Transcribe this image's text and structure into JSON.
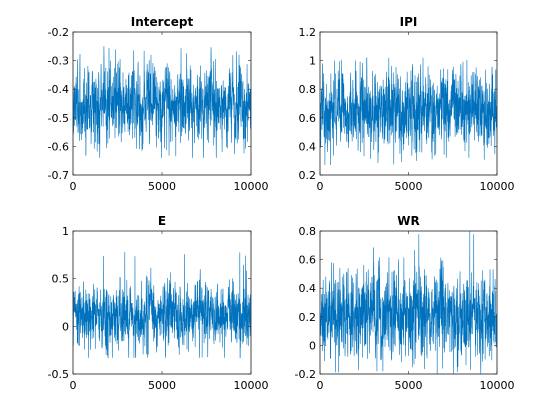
{
  "chart_data": [
    {
      "type": "line",
      "title": "Intercept",
      "xlabel": "",
      "ylabel": "",
      "xlim": [
        0,
        10000
      ],
      "ylim": [
        -0.7,
        -0.2
      ],
      "xticks": [
        0,
        5000,
        10000
      ],
      "yticks": [
        -0.7,
        -0.6,
        -0.5,
        -0.4,
        -0.3,
        -0.2
      ],
      "xtick_labels": [
        "0",
        "5000",
        "10000"
      ],
      "ytick_labels": [
        "-0.7",
        "-0.6",
        "-0.5",
        "-0.4",
        "-0.3",
        "-0.2"
      ],
      "grid": false,
      "series": [
        {
          "n": 10000,
          "mean": -0.45,
          "typical_low": -0.55,
          "typical_high": -0.35,
          "min": -0.64,
          "max": -0.25
        }
      ]
    },
    {
      "type": "line",
      "title": "IPI",
      "xlabel": "",
      "ylabel": "",
      "xlim": [
        0,
        10000
      ],
      "ylim": [
        0.2,
        1.2
      ],
      "xticks": [
        0,
        5000,
        10000
      ],
      "yticks": [
        0.2,
        0.4,
        0.6,
        0.8,
        1.0,
        1.2
      ],
      "xtick_labels": [
        "0",
        "5000",
        "10000"
      ],
      "ytick_labels": [
        "0.2",
        "0.4",
        "0.6",
        "0.8",
        "1",
        "1.2"
      ],
      "grid": false,
      "series": [
        {
          "n": 10000,
          "mean": 0.65,
          "typical_low": 0.45,
          "typical_high": 0.85,
          "min": 0.27,
          "max": 1.02
        }
      ]
    },
    {
      "type": "line",
      "title": "E",
      "xlabel": "",
      "ylabel": "",
      "xlim": [
        0,
        10000
      ],
      "ylim": [
        -0.5,
        1
      ],
      "xticks": [
        0,
        5000,
        10000
      ],
      "yticks": [
        -0.5,
        0,
        0.5,
        1
      ],
      "xtick_labels": [
        "0",
        "5000",
        "10000"
      ],
      "ytick_labels": [
        "-0.5",
        "0",
        "0.5",
        "1"
      ],
      "grid": false,
      "series": [
        {
          "n": 10000,
          "mean": 0.12,
          "typical_low": -0.12,
          "typical_high": 0.38,
          "min": -0.33,
          "max": 0.78
        }
      ]
    },
    {
      "type": "line",
      "title": "WR",
      "xlabel": "",
      "ylabel": "",
      "xlim": [
        0,
        10000
      ],
      "ylim": [
        -0.2,
        0.8
      ],
      "xticks": [
        0,
        5000,
        10000
      ],
      "yticks": [
        -0.2,
        0,
        0.2,
        0.4,
        0.6,
        0.8
      ],
      "xtick_labels": [
        "0",
        "5000",
        "10000"
      ],
      "ytick_labels": [
        "-0.2",
        "0",
        "0.2",
        "0.4",
        "0.6",
        "0.8"
      ],
      "grid": false,
      "series": [
        {
          "n": 10000,
          "mean": 0.22,
          "typical_low": 0.0,
          "typical_high": 0.45,
          "min": -0.2,
          "max": 0.8
        }
      ]
    }
  ],
  "colors": {
    "series": "#0072BD",
    "axes": "#262626",
    "background": "#ffffff"
  }
}
